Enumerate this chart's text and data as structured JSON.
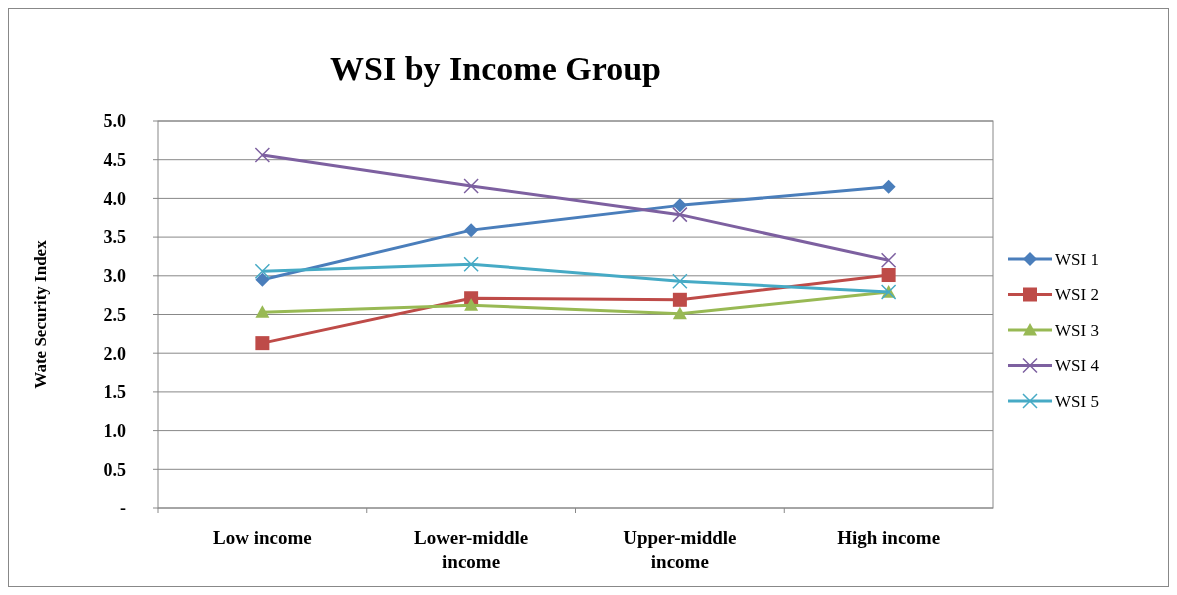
{
  "chart_data": {
    "type": "line",
    "title": "WSI by Income Group",
    "ylabel": "Wate Security Index",
    "categories": [
      "Low income",
      "Lower-middle income",
      "Upper-middle income",
      "High income"
    ],
    "ylim": [
      0,
      5
    ],
    "yticks": [
      {
        "value": 0,
        "label": "-"
      },
      {
        "value": 0.5,
        "label": "0.5"
      },
      {
        "value": 1,
        "label": "1.0"
      },
      {
        "value": 1.5,
        "label": "1.5"
      },
      {
        "value": 2,
        "label": "2.0"
      },
      {
        "value": 2.5,
        "label": "2.5"
      },
      {
        "value": 3,
        "label": "3.0"
      },
      {
        "value": 3.5,
        "label": "3.5"
      },
      {
        "value": 4,
        "label": "4.0"
      },
      {
        "value": 4.5,
        "label": "4.5"
      },
      {
        "value": 5,
        "label": "5.0"
      }
    ],
    "grid": "y",
    "legend": "right",
    "series": [
      {
        "name": "WSI 1",
        "color": "#4a7ebb",
        "marker": "diamond",
        "values": [
          2.95,
          3.59,
          3.91,
          4.15
        ]
      },
      {
        "name": "WSI 2",
        "color": "#be4b48",
        "marker": "square",
        "values": [
          2.13,
          2.71,
          2.69,
          3.01
        ]
      },
      {
        "name": "WSI 3",
        "color": "#98b954",
        "marker": "triangle",
        "values": [
          2.53,
          2.62,
          2.51,
          2.79
        ]
      },
      {
        "name": "WSI 4",
        "color": "#7d60a0",
        "marker": "cross",
        "values": [
          4.56,
          4.16,
          3.79,
          3.2
        ]
      },
      {
        "name": "WSI 5",
        "color": "#46aac5",
        "marker": "cross",
        "values": [
          3.06,
          3.15,
          2.93,
          2.79
        ]
      }
    ]
  }
}
